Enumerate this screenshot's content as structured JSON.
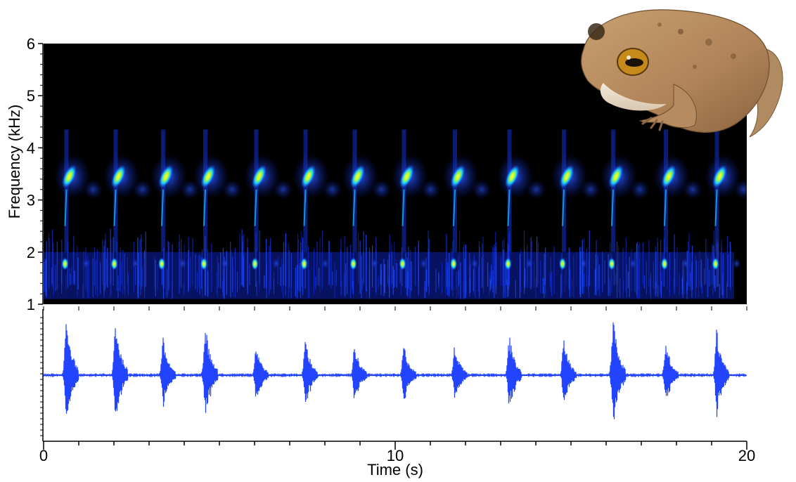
{
  "chart_data": [
    {
      "type": "heatmap",
      "panel": "spectrogram",
      "ylabel": "Frequency (kHz)",
      "xlabel": "",
      "xlim": [
        0,
        20
      ],
      "ylim": [
        1,
        6
      ],
      "yticks": [
        1,
        2,
        3,
        4,
        5,
        6
      ],
      "background": "#000000",
      "colormap": [
        "#000000",
        "#0a1a8a",
        "#1646ff",
        "#19c8ff",
        "#b9ff2c",
        "#ffff44"
      ],
      "call_times": [
        0.65,
        2.05,
        3.4,
        4.6,
        6.05,
        7.45,
        8.85,
        10.25,
        11.7,
        13.25,
        14.8,
        16.2,
        17.7,
        19.15
      ],
      "harmonic_band_khz": [
        3.0,
        4.3
      ],
      "fundamental_band_khz": [
        1.7,
        1.85
      ],
      "noise_band_khz": [
        1.1,
        2.0
      ]
    },
    {
      "type": "line",
      "panel": "waveform",
      "xlabel": "Time (s)",
      "ylabel": "",
      "xlim": [
        0,
        20
      ],
      "xticks": [
        0,
        10,
        20
      ],
      "color": "#2244ff",
      "call_times": [
        0.65,
        2.05,
        3.4,
        4.6,
        6.05,
        7.45,
        8.85,
        10.25,
        11.7,
        13.25,
        14.8,
        16.2,
        17.7,
        19.15
      ],
      "call_amplitudes": [
        1.0,
        0.92,
        0.6,
        0.85,
        0.5,
        0.6,
        0.5,
        0.5,
        0.5,
        0.65,
        0.6,
        0.95,
        0.55,
        0.75
      ]
    }
  ],
  "photo": {
    "subject": "frog",
    "icon": "frog-photo"
  }
}
